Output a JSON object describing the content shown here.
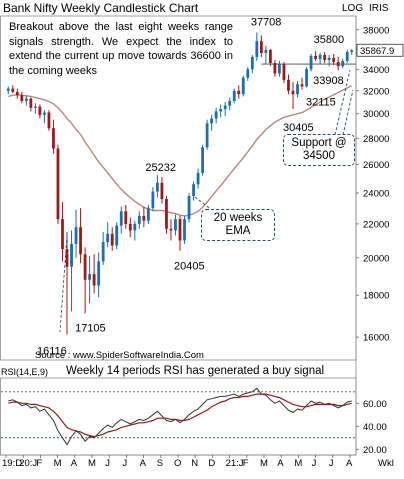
{
  "title": "Bank Nifty Weekly Candlestick Chart",
  "header_right": {
    "scale": "LOG",
    "symbol": "IRIS"
  },
  "commentary": "Breakout above the last eight weeks range signals strength. We expect the index to extend the current up move towards 36600 in the coming weeks",
  "source": "Source : www.SpiderSoftwareIndia.Com",
  "last_price_label": "35867.9",
  "callouts": {
    "ema": {
      "line1": "20 weeks",
      "line2": "EMA"
    },
    "support": {
      "line1": "Support @",
      "line2": "34500"
    }
  },
  "price_labels": [
    "37708",
    "35800",
    "33908",
    "32115",
    "30405",
    "25232",
    "20405",
    "17105",
    "16116"
  ],
  "rsi_label": "RSI(14,E,9)",
  "rsi_title": "Weekly 14 periods RSI has generated a buy signal",
  "x_labels": [
    "19:D",
    "20:J",
    "F",
    "M",
    "A",
    "M",
    "J",
    "J",
    "A",
    "S",
    "O",
    "N",
    "D",
    "21:J",
    "F",
    "M",
    "A",
    "M",
    "J",
    "J",
    "A"
  ],
  "x_unit": "Wkl",
  "colors": {
    "up": "#1c6fae",
    "down": "#9b1b1b",
    "ema": "#b8877f",
    "rsi_line": "#333333",
    "rsi_signal": "#8a1f1f",
    "guide": "#2e7d32"
  },
  "chart_data": [
    {
      "type": "candlestick",
      "title": "Bank Nifty Weekly Candlestick Chart",
      "yscale": "log",
      "ylim": [
        15000,
        39500
      ],
      "yticks": [
        16000,
        18000,
        20000,
        22000,
        24000,
        26000,
        28000,
        30000,
        32000,
        34000,
        36000,
        38000
      ],
      "x": [
        "19:D",
        "20:J",
        "F",
        "M",
        "A",
        "M",
        "J",
        "J",
        "A",
        "S",
        "O",
        "N",
        "D",
        "21:J",
        "F",
        "M",
        "A",
        "M",
        "J",
        "J",
        "A"
      ],
      "candles": [
        [
          32000,
          32400,
          31700,
          32200
        ],
        [
          32200,
          32500,
          31800,
          31900
        ],
        [
          31900,
          32200,
          31300,
          31600
        ],
        [
          31600,
          31900,
          30900,
          31100
        ],
        [
          31100,
          31600,
          30700,
          31300
        ],
        [
          31300,
          31400,
          30200,
          30500
        ],
        [
          30500,
          30900,
          30000,
          30600
        ],
        [
          30600,
          30800,
          29600,
          29900
        ],
        [
          29900,
          30300,
          29200,
          30100
        ],
        [
          30100,
          30300,
          28600,
          28800
        ],
        [
          28800,
          29500,
          26800,
          27200
        ],
        [
          27200,
          27500,
          22000,
          22300
        ],
        [
          22300,
          23400,
          19800,
          20500
        ],
        [
          20500,
          21500,
          16116,
          19500
        ],
        [
          19500,
          21600,
          17200,
          20800
        ],
        [
          20800,
          22900,
          20000,
          21800
        ],
        [
          21800,
          23000,
          19700,
          20200
        ],
        [
          20200,
          20600,
          17105,
          18800
        ],
        [
          18800,
          20100,
          17600,
          19100
        ],
        [
          19100,
          20200,
          18100,
          18500
        ],
        [
          18500,
          20300,
          17900,
          19800
        ],
        [
          19800,
          21500,
          19600,
          20900
        ],
        [
          20900,
          22100,
          20600,
          21400
        ],
        [
          21400,
          21800,
          20400,
          20700
        ],
        [
          20700,
          22100,
          20500,
          21900
        ],
        [
          21900,
          23100,
          21400,
          22800
        ],
        [
          22800,
          23200,
          21700,
          22000
        ],
        [
          22000,
          22400,
          21200,
          21600
        ],
        [
          21600,
          22200,
          21000,
          22000
        ],
        [
          22000,
          22800,
          21700,
          22500
        ],
        [
          22500,
          23100,
          21800,
          22200
        ],
        [
          22200,
          23200,
          22000,
          23000
        ],
        [
          23000,
          24400,
          22800,
          24100
        ],
        [
          24100,
          25232,
          23700,
          24700
        ],
        [
          24700,
          25100,
          23300,
          23600
        ],
        [
          23600,
          23800,
          21400,
          21700
        ],
        [
          21700,
          22300,
          21000,
          21600
        ],
        [
          21600,
          22600,
          21300,
          22300
        ],
        [
          22300,
          22500,
          20405,
          21000
        ],
        [
          21000,
          22500,
          20800,
          22300
        ],
        [
          22300,
          24000,
          22100,
          23800
        ],
        [
          23800,
          24800,
          23500,
          24600
        ],
        [
          24600,
          25700,
          24300,
          25400
        ],
        [
          25400,
          27500,
          25200,
          27300
        ],
        [
          27300,
          29500,
          27100,
          29200
        ],
        [
          29200,
          29900,
          28600,
          29600
        ],
        [
          29600,
          30500,
          29200,
          30200
        ],
        [
          30200,
          30800,
          29700,
          30400
        ],
        [
          30400,
          31000,
          29800,
          30700
        ],
        [
          30700,
          31400,
          30300,
          31100
        ],
        [
          31100,
          32200,
          30900,
          32000
        ],
        [
          32000,
          32500,
          31300,
          31700
        ],
        [
          31700,
          33400,
          31500,
          33200
        ],
        [
          33200,
          34200,
          32900,
          34000
        ],
        [
          34000,
          35400,
          33600,
          35200
        ],
        [
          35200,
          37708,
          34800,
          36800
        ],
        [
          36800,
          37400,
          35200,
          35600
        ],
        [
          35600,
          36300,
          34500,
          35900
        ],
        [
          35900,
          36000,
          34300,
          34600
        ],
        [
          34600,
          34900,
          33300,
          33600
        ],
        [
          33600,
          34800,
          33300,
          34500
        ],
        [
          34500,
          34700,
          32700,
          33000
        ],
        [
          33000,
          33500,
          31700,
          32000
        ],
        [
          32000,
          32800,
          30405,
          31700
        ],
        [
          31700,
          32900,
          31400,
          32600
        ],
        [
          32600,
          33200,
          32115,
          32400
        ],
        [
          32400,
          34200,
          32300,
          34000
        ],
        [
          34000,
          35500,
          33800,
          35300
        ],
        [
          35300,
          35800,
          34800,
          35000
        ],
        [
          35000,
          35600,
          34500,
          35400
        ],
        [
          35400,
          35700,
          34600,
          34900
        ],
        [
          34900,
          35400,
          34300,
          35100
        ],
        [
          35100,
          35500,
          34400,
          34700
        ],
        [
          34700,
          35200,
          33908,
          34300
        ],
        [
          34300,
          35000,
          34100,
          34800
        ],
        [
          34800,
          35900,
          34600,
          35700
        ],
        [
          35700,
          36000,
          35400,
          35868
        ]
      ],
      "ema20": [
        31500,
        31600,
        31650,
        31600,
        31550,
        31500,
        31400,
        31300,
        31200,
        31050,
        30850,
        30500,
        30100,
        29600,
        29200,
        28700,
        28300,
        27700,
        27200,
        26700,
        26200,
        25800,
        25400,
        25000,
        24600,
        24250,
        23950,
        23700,
        23450,
        23250,
        23050,
        22950,
        22850,
        22850,
        22850,
        22800,
        22700,
        22650,
        22550,
        22500,
        22550,
        22650,
        22800,
        23050,
        23400,
        23750,
        24150,
        24500,
        24900,
        25300,
        25700,
        26100,
        26500,
        26950,
        27400,
        27900,
        28300,
        28700,
        29000,
        29300,
        29500,
        29700,
        29800,
        29900,
        30000,
        30100,
        30300,
        30550,
        30800,
        31000,
        31250,
        31450,
        31650,
        31850,
        32050,
        32250,
        32450
      ],
      "support": 34500,
      "target": 36600
    },
    {
      "type": "line",
      "title": "Weekly 14 periods RSI has generated a buy signal",
      "ylim": [
        15,
        82
      ],
      "yticks": [
        20,
        40,
        60
      ],
      "guides": [
        70,
        30
      ],
      "series": [
        {
          "values": [
            62,
            63,
            61,
            58,
            59,
            56,
            57,
            53,
            55,
            50,
            45,
            36,
            30,
            24,
            31,
            36,
            33,
            27,
            31,
            30,
            34,
            38,
            41,
            39,
            43,
            46,
            44,
            42,
            44,
            46,
            45,
            47,
            50,
            53,
            49,
            45,
            44,
            46,
            43,
            46,
            50,
            53,
            55,
            59,
            63,
            64,
            65,
            66,
            66,
            67,
            68,
            66,
            68,
            69,
            70,
            73,
            68,
            67,
            63,
            60,
            62,
            58,
            54,
            52,
            55,
            54,
            58,
            62,
            60,
            61,
            59,
            60,
            58,
            56,
            58,
            61,
            62
          ]
        },
        {
          "values": [
            60,
            61,
            61,
            60,
            60,
            59,
            59,
            58,
            57,
            56,
            53,
            49,
            44,
            39,
            37,
            36,
            35,
            33,
            32,
            31,
            32,
            33,
            35,
            36,
            37,
            39,
            40,
            41,
            42,
            43,
            43,
            44,
            45,
            47,
            47,
            47,
            46,
            46,
            45,
            45,
            46,
            48,
            50,
            52,
            54,
            57,
            59,
            61,
            62,
            64,
            65,
            65,
            66,
            66,
            67,
            68,
            68,
            68,
            67,
            66,
            65,
            63,
            61,
            59,
            58,
            57,
            57,
            58,
            59,
            59,
            59,
            59,
            59,
            58,
            58,
            59,
            60
          ]
        }
      ]
    }
  ]
}
